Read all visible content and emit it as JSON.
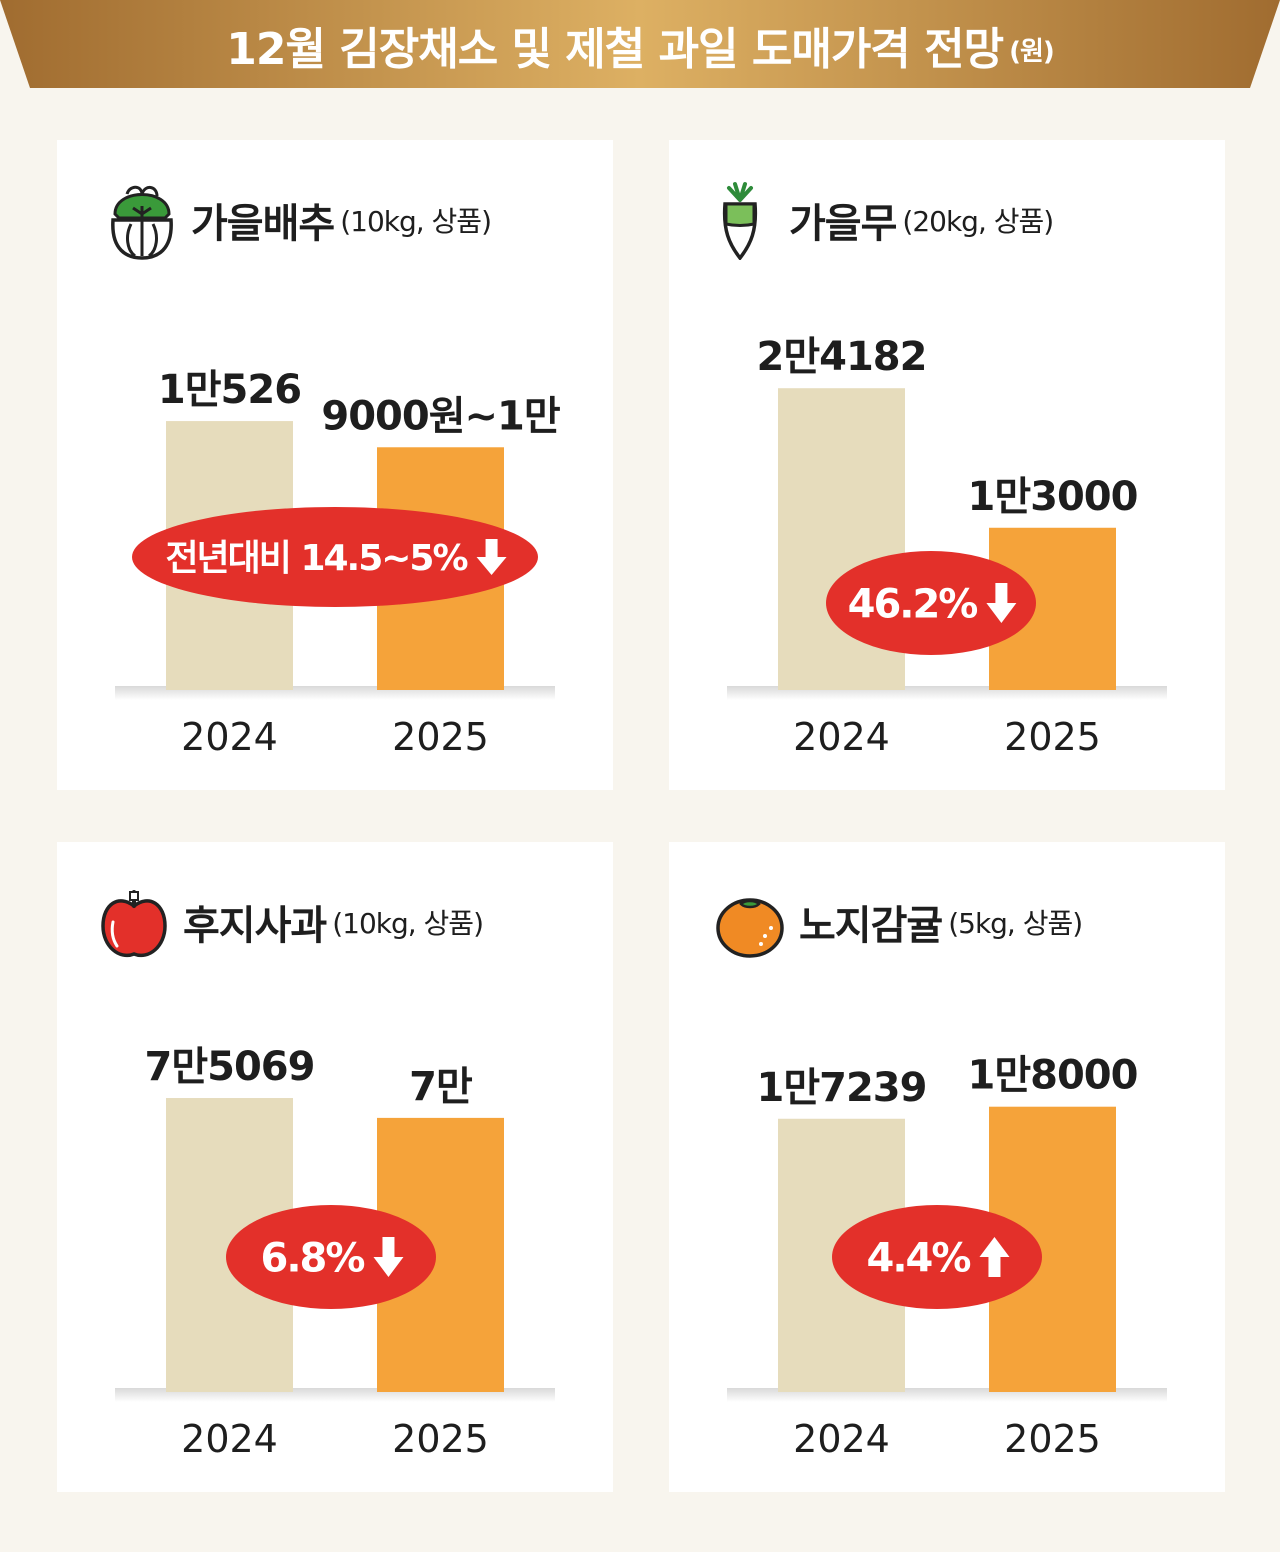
{
  "title": {
    "main": "12월 김장채소 및 제철 과일 도매가격 전망",
    "unit": "(원)"
  },
  "colors": {
    "bar_2024": "#e6dcbc",
    "bar_2025": "#f5a33a",
    "badge": "#e3302a",
    "banner_dark": "#a57233",
    "banner_light": "#dcae5c"
  },
  "panels": [
    {
      "name": "가을배추",
      "spec": "(10kg, 상품)",
      "icon": "napa-cabbage-icon",
      "badge": {
        "text": "전년대비 14.5~5%",
        "direction": "down"
      }
    },
    {
      "name": "가을무",
      "spec": "(20kg, 상품)",
      "icon": "radish-icon",
      "badge": {
        "text": "46.2%",
        "direction": "down"
      }
    },
    {
      "name": "후지사과",
      "spec": "(10kg, 상품)",
      "icon": "apple-icon",
      "badge": {
        "text": "6.8%",
        "direction": "down"
      }
    },
    {
      "name": "노지감귤",
      "spec": "(5kg, 상품)",
      "icon": "tangerine-icon",
      "badge": {
        "text": "4.4%",
        "direction": "up"
      }
    }
  ],
  "chart_data": [
    {
      "type": "bar",
      "title": "가을배추(10kg, 상품)",
      "categories": [
        "2024",
        "2025"
      ],
      "values": [
        10526,
        9500
      ],
      "value_range_2025": [
        9000,
        10000
      ],
      "data_labels": [
        "1만526",
        "9000원~1만"
      ],
      "change_pct": "-14.5~-5"
    },
    {
      "type": "bar",
      "title": "가을무(20kg, 상품)",
      "categories": [
        "2024",
        "2025"
      ],
      "values": [
        24182,
        13000
      ],
      "data_labels": [
        "2만4182",
        "1만3000"
      ],
      "change_pct": -46.2
    },
    {
      "type": "bar",
      "title": "후지사과(10kg, 상품)",
      "categories": [
        "2024",
        "2025"
      ],
      "values": [
        75069,
        70000
      ],
      "data_labels": [
        "7만5069",
        "7만"
      ],
      "change_pct": -6.8
    },
    {
      "type": "bar",
      "title": "노지감귤(5kg, 상품)",
      "categories": [
        "2024",
        "2025"
      ],
      "values": [
        17239,
        18000
      ],
      "data_labels": [
        "1만7239",
        "1만8000"
      ],
      "change_pct": 4.4
    }
  ]
}
